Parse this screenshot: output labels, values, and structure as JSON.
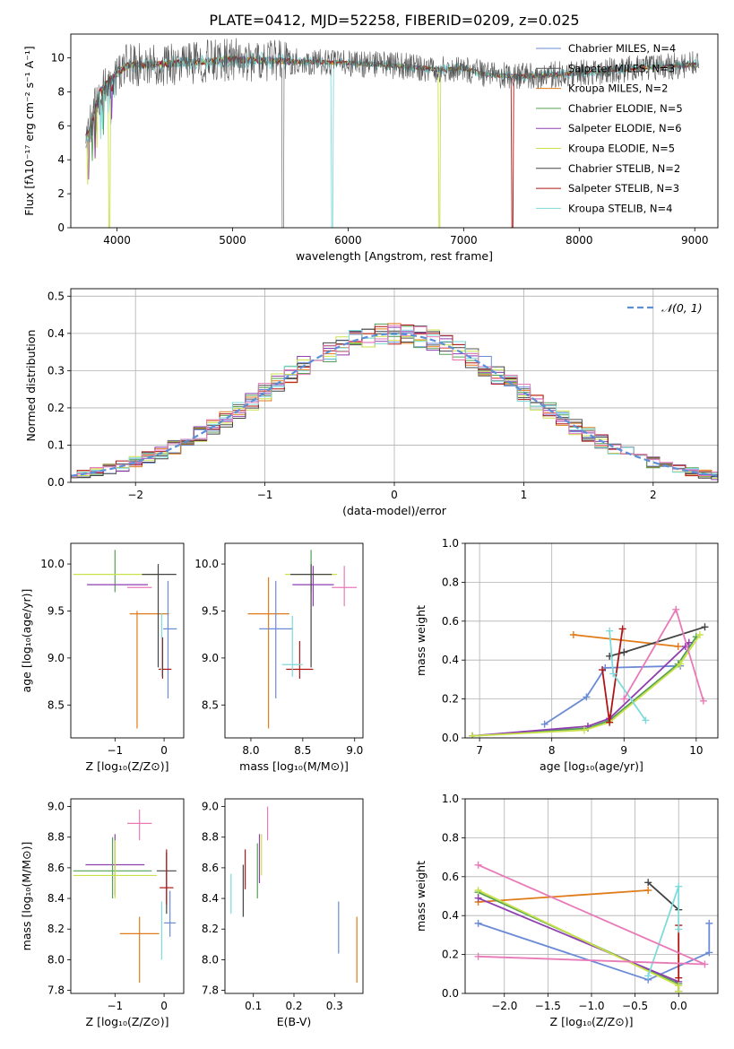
{
  "title": "PLATE=0412, MJD=52258, FIBERID=0209, z=0.025",
  "chart_data": [
    {
      "id": "spectrum",
      "type": "line",
      "xlabel": "wavelength [Angstrom, rest frame]",
      "ylabel": "Flux [fλ10⁻¹⁷ erg cm⁻² s⁻¹ A⁻¹]",
      "xlim": [
        3600,
        9200
      ],
      "ylim": [
        0,
        11.4
      ],
      "xticks": [
        4000,
        5000,
        6000,
        7000,
        8000,
        9000
      ],
      "yticks": [
        0,
        2,
        4,
        6,
        8,
        10
      ],
      "grid": false,
      "legend_position": "top-right",
      "legend": [
        {
          "name": "Chabrier MILES, N_SSP=4",
          "color": "#6b8bd6"
        },
        {
          "name": "Salpeter MILES, N_SSP=3",
          "color": "#555555"
        },
        {
          "name": "Kroupa MILES, N_SSP=2",
          "color": "#e07b1a"
        },
        {
          "name": "Chabrier ELODIE, N_SSP=5",
          "color": "#55a055"
        },
        {
          "name": "Salpeter ELODIE, N_SSP=6",
          "color": "#8e3fb0"
        },
        {
          "name": "Kroupa ELODIE, N_SSP=5",
          "color": "#c9e24a"
        },
        {
          "name": "Chabrier STELIB, N_SSP=2",
          "color": "#444444"
        },
        {
          "name": "Salpeter STELIB, N_SSP=3",
          "color": "#b01515"
        },
        {
          "name": "Kroupa STELIB, N_SSP=4",
          "color": "#7fdada"
        }
      ],
      "continuum": {
        "x": [
          3750,
          3850,
          3950,
          4100,
          4300,
          4600,
          5000,
          5500,
          6000,
          6500,
          6800,
          7000,
          7200,
          7500,
          8000,
          8500,
          9000
        ],
        "y": [
          5.5,
          8.0,
          8.8,
          9.6,
          9.6,
          9.7,
          9.9,
          9.8,
          9.7,
          9.5,
          9.3,
          9.4,
          9.0,
          8.9,
          9.1,
          9.4,
          9.6
        ]
      },
      "dips": [
        {
          "x": 3935,
          "y": 0.0,
          "series": "Kroupa ELODIE"
        },
        {
          "x": 5435,
          "y": 0.0,
          "series": "Salpeter MILES"
        },
        {
          "x": 5860,
          "y": 0.0,
          "series": "Kroupa STELIB"
        },
        {
          "x": 6790,
          "y": 0.0,
          "series": "Kroupa ELODIE"
        },
        {
          "x": 7420,
          "y": 0.0,
          "series": "Salpeter STELIB"
        }
      ]
    },
    {
      "id": "residuals",
      "type": "line",
      "xlabel": "(data-model)/error",
      "ylabel": "Normed distribution",
      "xlim": [
        -2.5,
        2.5
      ],
      "ylim": [
        0,
        0.52
      ],
      "xticks": [
        -2,
        -1,
        0,
        1,
        2
      ],
      "yticks": [
        0.0,
        0.1,
        0.2,
        0.3,
        0.4,
        0.5
      ],
      "grid": true,
      "legend_position": "top-right",
      "legend": [
        {
          "name": "𝒩(0, 1)",
          "color": "#5b8fd6",
          "style": "dashed"
        }
      ],
      "bin_width": 0.1,
      "histogram_colors": [
        "#6b8bd6",
        "#555555",
        "#e07b1a",
        "#55a055",
        "#8e3fb0",
        "#c9e24a",
        "#444444",
        "#b01515",
        "#7fdada",
        "#e87ab8"
      ]
    },
    {
      "id": "age-vs-Z",
      "type": "scatter",
      "xlabel": "Z [log₁₀(Z/Z⊙)]",
      "ylabel": "age  [log₁₀(age/yr)]",
      "xlim": [
        -1.9,
        0.4
      ],
      "ylim": [
        8.15,
        10.22
      ],
      "xticks": [
        -1,
        0
      ],
      "yticks": [
        8.5,
        9.0,
        9.5,
        10.0
      ],
      "points": [
        {
          "x": -1.0,
          "y": 10.15,
          "xerr": 0.0,
          "yerr": 0.0,
          "color": "#55a055",
          "vx": [
            -1.0,
            -1.0
          ],
          "hy": [
            9.7,
            10.15
          ],
          "hx": [
            -1.0,
            -1.0
          ]
        },
        {
          "x": -1.0,
          "y": 9.89,
          "xerr": 0.85,
          "yerr": 0.28,
          "color": "#c9e24a"
        },
        {
          "x": -0.95,
          "y": 9.78,
          "xerr": 0.62,
          "yerr": 0.08,
          "color": "#8e3fb0"
        },
        {
          "x": -0.5,
          "y": 9.75,
          "xerr": 0.25,
          "yerr": 0.0,
          "color": "#e87ab8"
        },
        {
          "x": -0.3,
          "y": 9.47,
          "xerr": 0.4,
          "yerr": 0.0,
          "color": "#e07b1a"
        },
        {
          "x": -0.55,
          "y": 9.47,
          "xerr": 0.0,
          "yerr": 0.0,
          "color": "#e07b1a",
          "vspan": [
            8.25,
            9.5
          ]
        },
        {
          "x": -0.1,
          "y": 9.89,
          "xerr": 0.35,
          "yerr": 0.0,
          "color": "#444444"
        },
        {
          "x": -0.12,
          "y": 9.4,
          "xerr": 0.0,
          "yerr": 0.0,
          "color": "#444444",
          "vspan": [
            8.9,
            10.0
          ]
        },
        {
          "x": 0.12,
          "y": 9.31,
          "xerr": 0.14,
          "yerr": 0.0,
          "color": "#6b8bd6"
        },
        {
          "x": 0.08,
          "y": 9.0,
          "xerr": 0.0,
          "yerr": 0.0,
          "color": "#6b8bd6",
          "vspan": [
            8.57,
            9.82
          ]
        },
        {
          "x": 0.02,
          "y": 8.88,
          "xerr": 0.13,
          "yerr": 0.0,
          "color": "#b01515"
        },
        {
          "x": -0.03,
          "y": 9.0,
          "xerr": 0.0,
          "yerr": 0.0,
          "color": "#b01515",
          "vspan": [
            8.78,
            9.22
          ]
        },
        {
          "x": -0.05,
          "y": 9.1,
          "xerr": 0.0,
          "yerr": 0.0,
          "color": "#7fdada",
          "vspan": [
            8.8,
            9.48
          ]
        }
      ]
    },
    {
      "id": "age-vs-mass",
      "type": "scatter",
      "xlabel": "mass [log₁₀(M/M⊙)]",
      "xlim": [
        7.75,
        9.08
      ],
      "ylim": [
        8.15,
        10.22
      ],
      "xticks": [
        8.0,
        8.5,
        9.0
      ],
      "yticks": [
        8.5,
        9.0,
        9.5,
        10.0
      ],
      "points": [
        {
          "x": 8.58,
          "y": 10.15,
          "color": "#55a055",
          "vspan": [
            9.7,
            10.15
          ]
        },
        {
          "x": 8.58,
          "y": 9.89,
          "xerr": 0.25,
          "color": "#c9e24a"
        },
        {
          "x": 8.6,
          "y": 9.78,
          "xerr": 0.2,
          "color": "#8e3fb0",
          "vspan": [
            9.55,
            9.98
          ]
        },
        {
          "x": 8.9,
          "y": 9.75,
          "xerr": 0.12,
          "color": "#e87ab8",
          "vspan": [
            9.55,
            9.98
          ]
        },
        {
          "x": 8.17,
          "y": 9.47,
          "xerr": 0.2,
          "color": "#e07b1a",
          "vspan": [
            8.25,
            9.86
          ]
        },
        {
          "x": 8.58,
          "y": 9.89,
          "xerr": 0.2,
          "color": "#444444",
          "vspan": [
            8.9,
            10.0
          ]
        },
        {
          "x": 8.24,
          "y": 9.31,
          "xerr": 0.16,
          "color": "#6b8bd6",
          "vspan": [
            8.57,
            9.82
          ]
        },
        {
          "x": 8.47,
          "y": 8.88,
          "xerr": 0.13,
          "color": "#b01515",
          "vspan": [
            8.78,
            9.18
          ]
        },
        {
          "x": 8.4,
          "y": 8.93,
          "xerr": 0.1,
          "color": "#7fdada",
          "vspan": [
            8.8,
            9.45
          ]
        }
      ]
    },
    {
      "id": "weight-vs-age",
      "type": "line",
      "xlabel": "age  [log₁₀(age/yr)]",
      "ylabel": "mass weight",
      "xlim": [
        6.8,
        10.3
      ],
      "ylim": [
        0,
        1.0
      ],
      "xticks": [
        7,
        8,
        9,
        10
      ],
      "yticks": [
        0.0,
        0.2,
        0.4,
        0.6,
        0.8,
        1.0
      ],
      "grid": true,
      "series": [
        {
          "color": "#6b8bd6",
          "x": [
            7.9,
            8.48,
            8.74,
            9.78
          ],
          "y": [
            0.07,
            0.21,
            0.36,
            0.37
          ]
        },
        {
          "color": "#e07b1a",
          "x": [
            8.3,
            9.75
          ],
          "y": [
            0.53,
            0.47
          ]
        },
        {
          "color": "#444444",
          "x": [
            8.8,
            9.0,
            10.12
          ],
          "y": [
            0.42,
            0.44,
            0.57
          ]
        },
        {
          "color": "#55a055",
          "x": [
            6.9,
            8.5,
            8.8,
            9.75,
            10.0
          ],
          "y": [
            0.01,
            0.05,
            0.09,
            0.38,
            0.52
          ]
        },
        {
          "color": "#8e3fb0",
          "x": [
            6.9,
            8.5,
            8.8,
            9.85,
            9.9
          ],
          "y": [
            0.01,
            0.06,
            0.1,
            0.47,
            0.49
          ]
        },
        {
          "color": "#c9e24a",
          "x": [
            6.9,
            8.45,
            8.8,
            9.78,
            10.05
          ],
          "y": [
            0.01,
            0.04,
            0.08,
            0.38,
            0.53
          ]
        },
        {
          "color": "#b01515",
          "x": [
            8.7,
            8.8,
            8.98
          ],
          "y": [
            0.35,
            0.08,
            0.56
          ]
        },
        {
          "color": "#7fdada",
          "x": [
            8.8,
            8.85,
            9.3
          ],
          "y": [
            0.55,
            0.33,
            0.09
          ]
        },
        {
          "color": "#e87ab8",
          "x": [
            9.0,
            9.72,
            10.1
          ],
          "y": [
            0.2,
            0.66,
            0.19
          ]
        }
      ]
    },
    {
      "id": "mass-vs-Z",
      "type": "scatter",
      "xlabel": "Z [log₁₀(Z/Z⊙)]",
      "ylabel": "mass [log₁₀(M/M⊙)]",
      "xlim": [
        -1.9,
        0.4
      ],
      "ylim": [
        7.78,
        9.05
      ],
      "xticks": [
        -1,
        0
      ],
      "yticks": [
        7.8,
        8.0,
        8.2,
        8.4,
        8.6,
        8.8,
        9.0
      ],
      "points": [
        {
          "x": -0.5,
          "y": 8.89,
          "xerr": 0.25,
          "color": "#e87ab8",
          "vspan": [
            8.78,
            8.98
          ]
        },
        {
          "x": -1.0,
          "y": 8.62,
          "xerr": 0.6,
          "color": "#8e3fb0",
          "vspan": [
            8.42,
            8.82
          ]
        },
        {
          "x": -1.05,
          "y": 8.58,
          "xerr": 0.8,
          "color": "#55a055",
          "vspan": [
            8.4,
            8.8
          ]
        },
        {
          "x": -1.0,
          "y": 8.55,
          "xerr": 0.85,
          "color": "#c9e24a",
          "vspan": [
            8.4,
            8.78
          ]
        },
        {
          "x": -0.5,
          "y": 8.17,
          "xerr": 0.4,
          "color": "#e07b1a",
          "vspan": [
            7.85,
            8.28
          ]
        },
        {
          "x": 0.05,
          "y": 8.58,
          "xerr": 0.2,
          "color": "#444444",
          "vspan": [
            8.3,
            8.7
          ]
        },
        {
          "x": 0.05,
          "y": 8.47,
          "xerr": 0.14,
          "color": "#b01515",
          "vspan": [
            8.36,
            8.72
          ]
        },
        {
          "x": 0.12,
          "y": 8.24,
          "xerr": 0.12,
          "color": "#6b8bd6",
          "vspan": [
            8.15,
            8.45
          ]
        },
        {
          "x": -0.05,
          "y": 8.3,
          "xerr": 0.0,
          "color": "#7fdada",
          "vspan": [
            8.0,
            8.38
          ]
        }
      ]
    },
    {
      "id": "mass-vs-EBV",
      "type": "scatter",
      "xlabel": "E(B-V)",
      "xlim": [
        0.03,
        0.37
      ],
      "ylim": [
        7.78,
        9.05
      ],
      "xticks": [
        0.1,
        0.2,
        0.3
      ],
      "yticks": [
        7.8,
        8.0,
        8.2,
        8.4,
        8.6,
        8.8,
        9.0
      ],
      "points": [
        {
          "x": 0.045,
          "color": "#7fdada",
          "vspan": [
            8.3,
            8.56
          ]
        },
        {
          "x": 0.075,
          "color": "#444444",
          "vspan": [
            8.28,
            8.62
          ]
        },
        {
          "x": 0.08,
          "color": "#b01515",
          "vspan": [
            8.46,
            8.72
          ]
        },
        {
          "x": 0.11,
          "color": "#55a055",
          "vspan": [
            8.4,
            8.76
          ]
        },
        {
          "x": 0.115,
          "color": "#8e3fb0",
          "vspan": [
            8.5,
            8.82
          ]
        },
        {
          "x": 0.12,
          "color": "#c9e24a",
          "vspan": [
            8.55,
            8.82
          ]
        },
        {
          "x": 0.135,
          "color": "#e87ab8",
          "vspan": [
            8.78,
            9.0
          ]
        },
        {
          "x": 0.31,
          "color": "#6b8bd6",
          "vspan": [
            8.04,
            8.38
          ]
        },
        {
          "x": 0.355,
          "color": "#e07b1a",
          "vspan": [
            7.85,
            8.28
          ]
        }
      ]
    },
    {
      "id": "weight-vs-Z",
      "type": "line",
      "xlabel": "Z [log₁₀(Z/Z⊙)]",
      "ylabel": "mass weight",
      "xlim": [
        -2.45,
        0.45
      ],
      "ylim": [
        0,
        1.0
      ],
      "xticks": [
        -2.0,
        -1.5,
        -1.0,
        -0.5,
        0.0
      ],
      "yticks": [
        0.0,
        0.2,
        0.4,
        0.6,
        0.8,
        1.0
      ],
      "grid": true,
      "series": [
        {
          "color": "#6b8bd6",
          "x": [
            -2.3,
            -0.35,
            0.35,
            0.35
          ],
          "y": [
            0.36,
            0.07,
            0.21,
            0.36
          ]
        },
        {
          "color": "#e07b1a",
          "x": [
            -2.3,
            -0.35
          ],
          "y": [
            0.47,
            0.53
          ]
        },
        {
          "color": "#444444",
          "x": [
            -0.35,
            0.0
          ],
          "y": [
            0.57,
            0.43
          ]
        },
        {
          "color": "#55a055",
          "x": [
            -2.3,
            0.0,
            0.0
          ],
          "y": [
            0.52,
            0.05,
            0.01
          ]
        },
        {
          "color": "#8e3fb0",
          "x": [
            -2.3,
            0.0,
            0.0
          ],
          "y": [
            0.49,
            0.06,
            0.01
          ]
        },
        {
          "color": "#c9e24a",
          "x": [
            -2.3,
            0.0,
            0.0
          ],
          "y": [
            0.53,
            0.04,
            0.01
          ]
        },
        {
          "color": "#b01515",
          "x": [
            0.0,
            0.0
          ],
          "y": [
            0.35,
            0.08
          ]
        },
        {
          "color": "#7fdada",
          "x": [
            -0.35,
            0.0,
            0.0
          ],
          "y": [
            0.09,
            0.55,
            0.33
          ]
        },
        {
          "color": "#e87ab8",
          "x": [
            -2.3,
            0.3,
            -2.3
          ],
          "y": [
            0.66,
            0.15,
            0.19
          ]
        }
      ]
    }
  ]
}
